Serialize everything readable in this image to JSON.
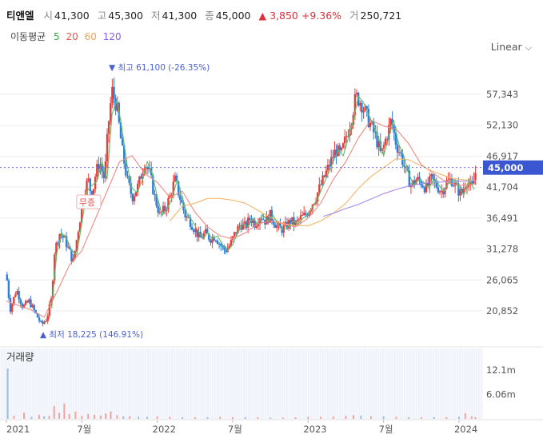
{
  "header": {
    "name": "티앤엘",
    "open_label": "시",
    "open": "41,300",
    "high_label": "고",
    "high": "45,300",
    "low_label": "저",
    "low": "41,300",
    "close_label": "종",
    "close": "45,000",
    "change": "▲ 3,850",
    "change_pct": "+9.36%",
    "volume_label": "거",
    "volume": "250,721"
  },
  "ma_legend": {
    "label": "이동평균",
    "items": [
      {
        "period": "5",
        "color": "#3aa84a"
      },
      {
        "period": "20",
        "color": "#e25a4a"
      },
      {
        "period": "60",
        "color": "#f0a050"
      },
      {
        "period": "120",
        "color": "#8a5fe0"
      }
    ]
  },
  "scale_selector": {
    "label": "Linear",
    "icon": "chevron-down-icon"
  },
  "colors": {
    "up": "#e5403d",
    "down": "#2e7fd6",
    "current_price_bg": "#3a56d0",
    "volume_grid": "#f0f4fa"
  },
  "chart_data": {
    "type": "candlestick",
    "price_ticks": [
      57343,
      52130,
      46917,
      41704,
      36491,
      31278,
      26065,
      20852
    ],
    "price_tick_labels": [
      "57,343",
      "52,130",
      "46,917",
      "41,704",
      "36,491",
      "31,278",
      "26,065",
      "20,852"
    ],
    "x_ticks": [
      "2021",
      "7월",
      "2022",
      "7월",
      "2023",
      "7월",
      "2024"
    ],
    "x_tick_positions_monthly": [
      0,
      6,
      12,
      18,
      24,
      30,
      36
    ],
    "x_range_months": [
      0,
      37.4
    ],
    "current_price": "45,000",
    "max_marker": {
      "label": "최고",
      "value": "61,100",
      "pct": "(-26.35%)",
      "month_index": 8.4
    },
    "min_marker": {
      "label": "최저",
      "value": "18,225",
      "pct": "(146.91%)",
      "month_index": 2.8
    },
    "badge": {
      "label": "무증",
      "month_index": 6.1
    },
    "monthly_close_path": [
      {
        "m": 0.0,
        "p": 27000
      },
      {
        "m": 0.3,
        "p": 21000
      },
      {
        "m": 0.8,
        "p": 24500
      },
      {
        "m": 1.3,
        "p": 21500
      },
      {
        "m": 1.8,
        "p": 22500
      },
      {
        "m": 2.3,
        "p": 20500
      },
      {
        "m": 2.8,
        "p": 18500
      },
      {
        "m": 3.2,
        "p": 19500
      },
      {
        "m": 3.6,
        "p": 23000
      },
      {
        "m": 3.8,
        "p": 30500
      },
      {
        "m": 4.2,
        "p": 34000
      },
      {
        "m": 4.6,
        "p": 33000
      },
      {
        "m": 5.0,
        "p": 31000
      },
      {
        "m": 5.3,
        "p": 29000
      },
      {
        "m": 5.6,
        "p": 33000
      },
      {
        "m": 5.9,
        "p": 37000
      },
      {
        "m": 6.2,
        "p": 41000
      },
      {
        "m": 6.5,
        "p": 43000
      },
      {
        "m": 6.8,
        "p": 40000
      },
      {
        "m": 7.1,
        "p": 44000
      },
      {
        "m": 7.4,
        "p": 46000
      },
      {
        "m": 7.8,
        "p": 43000
      },
      {
        "m": 8.1,
        "p": 52000
      },
      {
        "m": 8.4,
        "p": 58000
      },
      {
        "m": 8.8,
        "p": 55000
      },
      {
        "m": 9.2,
        "p": 48000
      },
      {
        "m": 9.6,
        "p": 43000
      },
      {
        "m": 10.0,
        "p": 40000
      },
      {
        "m": 10.5,
        "p": 42000
      },
      {
        "m": 11.0,
        "p": 46000
      },
      {
        "m": 11.4,
        "p": 44000
      },
      {
        "m": 11.8,
        "p": 40000
      },
      {
        "m": 12.2,
        "p": 37000
      },
      {
        "m": 12.6,
        "p": 38000
      },
      {
        "m": 13.0,
        "p": 40000
      },
      {
        "m": 13.4,
        "p": 43000
      },
      {
        "m": 13.8,
        "p": 40000
      },
      {
        "m": 14.2,
        "p": 37000
      },
      {
        "m": 14.6,
        "p": 36000
      },
      {
        "m": 15.0,
        "p": 34500
      },
      {
        "m": 15.4,
        "p": 33000
      },
      {
        "m": 15.8,
        "p": 34000
      },
      {
        "m": 16.2,
        "p": 33000
      },
      {
        "m": 16.6,
        "p": 33500
      },
      {
        "m": 17.0,
        "p": 32000
      },
      {
        "m": 17.4,
        "p": 31000
      },
      {
        "m": 17.8,
        "p": 32000
      },
      {
        "m": 18.2,
        "p": 34000
      },
      {
        "m": 18.6,
        "p": 35500
      },
      {
        "m": 19.0,
        "p": 35000
      },
      {
        "m": 19.4,
        "p": 36500
      },
      {
        "m": 19.8,
        "p": 35500
      },
      {
        "m": 20.2,
        "p": 37000
      },
      {
        "m": 20.6,
        "p": 36000
      },
      {
        "m": 21.0,
        "p": 37000
      },
      {
        "m": 21.4,
        "p": 35500
      },
      {
        "m": 21.8,
        "p": 34500
      },
      {
        "m": 22.2,
        "p": 35000
      },
      {
        "m": 22.6,
        "p": 36000
      },
      {
        "m": 23.0,
        "p": 35500
      },
      {
        "m": 23.4,
        "p": 36500
      },
      {
        "m": 23.8,
        "p": 37000
      },
      {
        "m": 24.2,
        "p": 38500
      },
      {
        "m": 24.6,
        "p": 40000
      },
      {
        "m": 25.0,
        "p": 42000
      },
      {
        "m": 25.4,
        "p": 44000
      },
      {
        "m": 25.8,
        "p": 46000
      },
      {
        "m": 26.2,
        "p": 48000
      },
      {
        "m": 26.6,
        "p": 47000
      },
      {
        "m": 27.0,
        "p": 50000
      },
      {
        "m": 27.4,
        "p": 53000
      },
      {
        "m": 27.8,
        "p": 57000
      },
      {
        "m": 28.2,
        "p": 56000
      },
      {
        "m": 28.6,
        "p": 54000
      },
      {
        "m": 29.0,
        "p": 52000
      },
      {
        "m": 29.4,
        "p": 50000
      },
      {
        "m": 29.8,
        "p": 47000
      },
      {
        "m": 30.2,
        "p": 50000
      },
      {
        "m": 30.6,
        "p": 53000
      },
      {
        "m": 31.0,
        "p": 49000
      },
      {
        "m": 31.4,
        "p": 47000
      },
      {
        "m": 31.8,
        "p": 44000
      },
      {
        "m": 32.2,
        "p": 42000
      },
      {
        "m": 32.6,
        "p": 43000
      },
      {
        "m": 33.0,
        "p": 42500
      },
      {
        "m": 33.4,
        "p": 41500
      },
      {
        "m": 33.8,
        "p": 43000
      },
      {
        "m": 34.2,
        "p": 42000
      },
      {
        "m": 34.6,
        "p": 41000
      },
      {
        "m": 35.0,
        "p": 42500
      },
      {
        "m": 35.4,
        "p": 43000
      },
      {
        "m": 35.8,
        "p": 41500
      },
      {
        "m": 36.2,
        "p": 40500
      },
      {
        "m": 36.6,
        "p": 43000
      },
      {
        "m": 37.0,
        "p": 41300
      },
      {
        "m": 37.4,
        "p": 45000
      }
    ],
    "ma20": [
      {
        "m": 0,
        "p": 22500
      },
      {
        "m": 2,
        "p": 21000
      },
      {
        "m": 3,
        "p": 19800
      },
      {
        "m": 4,
        "p": 24000
      },
      {
        "m": 5,
        "p": 28500
      },
      {
        "m": 6,
        "p": 31000
      },
      {
        "m": 7,
        "p": 36000
      },
      {
        "m": 8,
        "p": 41000
      },
      {
        "m": 9,
        "p": 46000
      },
      {
        "m": 10,
        "p": 47000
      },
      {
        "m": 11,
        "p": 44000
      },
      {
        "m": 12,
        "p": 42500
      },
      {
        "m": 13,
        "p": 40000
      },
      {
        "m": 14,
        "p": 41000
      },
      {
        "m": 15,
        "p": 37500
      },
      {
        "m": 16,
        "p": 35000
      },
      {
        "m": 17,
        "p": 33500
      },
      {
        "m": 18,
        "p": 33000
      },
      {
        "m": 19,
        "p": 34000
      },
      {
        "m": 20,
        "p": 35500
      },
      {
        "m": 21,
        "p": 36000
      },
      {
        "m": 22,
        "p": 35500
      },
      {
        "m": 23,
        "p": 35000
      },
      {
        "m": 24,
        "p": 36500
      },
      {
        "m": 25,
        "p": 39000
      },
      {
        "m": 26,
        "p": 43000
      },
      {
        "m": 27,
        "p": 46000
      },
      {
        "m": 28,
        "p": 50000
      },
      {
        "m": 29,
        "p": 53000
      },
      {
        "m": 30,
        "p": 52000
      },
      {
        "m": 31,
        "p": 51500
      },
      {
        "m": 32,
        "p": 49000
      },
      {
        "m": 33,
        "p": 45500
      },
      {
        "m": 34,
        "p": 44000
      },
      {
        "m": 35,
        "p": 42500
      },
      {
        "m": 36,
        "p": 42000
      },
      {
        "m": 37.4,
        "p": 42200
      }
    ],
    "ma60": [
      {
        "m": 13,
        "p": 36000
      },
      {
        "m": 14,
        "p": 38500
      },
      {
        "m": 15,
        "p": 39000
      },
      {
        "m": 16,
        "p": 39800
      },
      {
        "m": 17,
        "p": 39800
      },
      {
        "m": 18,
        "p": 39500
      },
      {
        "m": 19,
        "p": 39000
      },
      {
        "m": 20,
        "p": 37800
      },
      {
        "m": 21,
        "p": 36600
      },
      {
        "m": 22,
        "p": 35600
      },
      {
        "m": 23,
        "p": 35200
      },
      {
        "m": 24,
        "p": 35200
      },
      {
        "m": 25,
        "p": 36000
      },
      {
        "m": 26,
        "p": 37300
      },
      {
        "m": 27,
        "p": 39000
      },
      {
        "m": 28,
        "p": 41500
      },
      {
        "m": 29,
        "p": 43500
      },
      {
        "m": 30,
        "p": 45000
      },
      {
        "m": 31,
        "p": 46500
      },
      {
        "m": 32,
        "p": 46300
      },
      {
        "m": 33,
        "p": 45300
      },
      {
        "m": 34,
        "p": 44300
      },
      {
        "m": 35,
        "p": 43500
      },
      {
        "m": 36,
        "p": 43000
      },
      {
        "m": 37.4,
        "p": 42800
      }
    ],
    "ma120": [
      {
        "m": 25.2,
        "p": 36800
      },
      {
        "m": 26,
        "p": 37300
      },
      {
        "m": 27,
        "p": 38100
      },
      {
        "m": 28,
        "p": 38800
      },
      {
        "m": 29,
        "p": 39700
      },
      {
        "m": 30,
        "p": 40600
      },
      {
        "m": 31,
        "p": 41300
      },
      {
        "m": 32,
        "p": 41900
      },
      {
        "m": 33,
        "p": 42300
      },
      {
        "m": 34,
        "p": 42500
      },
      {
        "m": 35,
        "p": 42600
      },
      {
        "m": 36,
        "p": 42700
      },
      {
        "m": 37.4,
        "p": 42800
      }
    ],
    "volume": {
      "title": "거래량",
      "ticks": [
        "12.1m",
        "6.06m"
      ],
      "tick_values": [
        12.1,
        6.06
      ],
      "unit": "m",
      "bars": [
        {
          "m": 0.1,
          "v": 12.5,
          "up": false
        },
        {
          "m": 0.6,
          "v": 0.8,
          "up": true
        },
        {
          "m": 1.4,
          "v": 1.5,
          "up": true
        },
        {
          "m": 2.0,
          "v": 0.5,
          "up": false
        },
        {
          "m": 2.6,
          "v": 1.0,
          "up": true
        },
        {
          "m": 3.0,
          "v": 0.6,
          "up": false
        },
        {
          "m": 3.4,
          "v": 0.7,
          "up": true
        },
        {
          "m": 3.8,
          "v": 3.2,
          "up": true
        },
        {
          "m": 4.2,
          "v": 1.5,
          "up": true
        },
        {
          "m": 4.6,
          "v": 3.8,
          "up": true
        },
        {
          "m": 5.0,
          "v": 1.2,
          "up": true
        },
        {
          "m": 5.5,
          "v": 1.8,
          "up": true
        },
        {
          "m": 6.0,
          "v": 0.7,
          "up": true
        },
        {
          "m": 6.5,
          "v": 1.2,
          "up": true
        },
        {
          "m": 7.0,
          "v": 1.0,
          "up": true
        },
        {
          "m": 7.5,
          "v": 0.8,
          "up": true
        },
        {
          "m": 7.9,
          "v": 1.3,
          "up": true
        },
        {
          "m": 8.3,
          "v": 1.8,
          "up": true
        },
        {
          "m": 8.8,
          "v": 0.9,
          "up": true
        },
        {
          "m": 9.3,
          "v": 0.6,
          "up": false
        },
        {
          "m": 9.8,
          "v": 0.6,
          "up": true
        },
        {
          "m": 10.5,
          "v": 0.5,
          "up": false
        },
        {
          "m": 11.2,
          "v": 0.5,
          "up": false
        },
        {
          "m": 12.0,
          "v": 0.6,
          "up": true
        },
        {
          "m": 13.0,
          "v": 0.5,
          "up": true
        },
        {
          "m": 14.0,
          "v": 0.4,
          "up": false
        },
        {
          "m": 15.0,
          "v": 0.4,
          "up": true
        },
        {
          "m": 16.0,
          "v": 0.4,
          "up": false
        },
        {
          "m": 17.0,
          "v": 0.5,
          "up": true
        },
        {
          "m": 18.0,
          "v": 0.4,
          "up": true
        },
        {
          "m": 19.0,
          "v": 0.4,
          "up": false
        },
        {
          "m": 20.0,
          "v": 0.4,
          "up": true
        },
        {
          "m": 21.0,
          "v": 0.3,
          "up": false
        },
        {
          "m": 22.0,
          "v": 0.3,
          "up": true
        },
        {
          "m": 23.0,
          "v": 0.4,
          "up": true
        },
        {
          "m": 24.0,
          "v": 0.5,
          "up": true
        },
        {
          "m": 25.0,
          "v": 0.5,
          "up": true
        },
        {
          "m": 26.0,
          "v": 0.6,
          "up": true
        },
        {
          "m": 27.0,
          "v": 0.7,
          "up": true
        },
        {
          "m": 27.6,
          "v": 0.9,
          "up": true
        },
        {
          "m": 28.2,
          "v": 0.8,
          "up": false
        },
        {
          "m": 29.0,
          "v": 0.6,
          "up": true
        },
        {
          "m": 30.0,
          "v": 0.6,
          "up": false
        },
        {
          "m": 31.0,
          "v": 0.5,
          "up": true
        },
        {
          "m": 32.0,
          "v": 0.4,
          "up": false
        },
        {
          "m": 33.0,
          "v": 0.4,
          "up": true
        },
        {
          "m": 34.0,
          "v": 0.4,
          "up": false
        },
        {
          "m": 35.0,
          "v": 0.4,
          "up": true
        },
        {
          "m": 36.0,
          "v": 0.5,
          "up": false
        },
        {
          "m": 36.5,
          "v": 1.4,
          "up": true
        },
        {
          "m": 37.0,
          "v": 0.6,
          "up": true
        },
        {
          "m": 37.3,
          "v": 0.4,
          "up": true
        }
      ]
    }
  }
}
